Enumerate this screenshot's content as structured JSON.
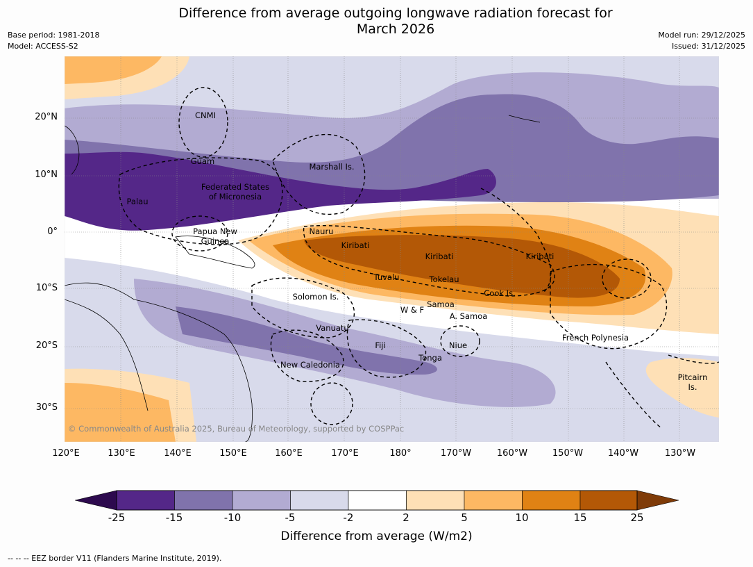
{
  "title_line1": "Difference from average outgoing longwave radiation forecast for",
  "title_line2": "March 2026",
  "meta": {
    "base_period": "Base period: 1981-2018",
    "model": "Model: ACCESS-S2",
    "model_run": "Model run: 29/12/2025",
    "issued": "Issued: 31/12/2025"
  },
  "map": {
    "lat_labels": [
      "20°N",
      "10°N",
      "0°",
      "10°S",
      "20°S",
      "30°S"
    ],
    "lon_labels": [
      "120°E",
      "130°E",
      "140°E",
      "150°E",
      "160°E",
      "170°E",
      "180°",
      "170°W",
      "160°W",
      "150°W",
      "140°W",
      "130°W"
    ],
    "regions": {
      "cnmi": "CNMI",
      "guam": "Guam",
      "marshall": "Marshall Is.",
      "fsm1": "Federated States",
      "fsm2": "of Micronesia",
      "palau": "Palau",
      "png1": "Papua New",
      "png2": "Guinea",
      "nauru": "Nauru",
      "kiribati_w": "Kiribati",
      "kiribati_c": "Kiribati",
      "kiribati_e": "Kiribati",
      "tuvalu": "Tuvalu",
      "tokelau": "Tokelau",
      "cook": "Cook Is.",
      "solomon": "Solomon Is.",
      "samoa": "Samoa",
      "wf": "W & F",
      "asamoa": "A. Samoa",
      "vanuatu": "Vanuatu",
      "fiji": "Fiji",
      "niue": "Niue",
      "tonga": "Tonga",
      "newcal": "New Caledonia",
      "fp": "French Polynesia",
      "pitcairn1": "Pitcairn",
      "pitcairn2": "Is."
    },
    "copyright": "© Commonwealth of Australia 2025, Bureau of Meteorology, supported by COSPPac"
  },
  "colorbar": {
    "colors": [
      "#2d0a4e",
      "#542788",
      "#8073ac",
      "#b2abd2",
      "#d8daeb",
      "#ffffff",
      "#fee0b6",
      "#fdb863",
      "#e08214",
      "#b35806",
      "#7f3b08"
    ],
    "ticks": [
      "-25",
      "-15",
      "-10",
      "-5",
      "-2",
      "2",
      "5",
      "10",
      "15",
      "25"
    ],
    "label": "Difference from average (W/m2)"
  },
  "footnote": "--  --  -- EEZ border V11 (Flanders Marine Institute, 2019)."
}
